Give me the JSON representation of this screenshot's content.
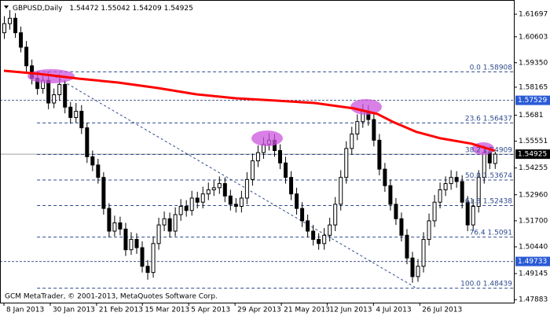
{
  "chart_data": {
    "type": "candlestick",
    "symbol": "GBPUSD,Daily",
    "ohlc": [
      1.54472,
      1.55042,
      1.54209,
      1.54925
    ],
    "footer": "GCM MetaTrader, © 2001-2013, MetaQuotes Software Corp.",
    "ylim": [
      1.4774,
      1.6227
    ],
    "yticks": [
      1.61697,
      1.60603,
      {
        "value": 1.5935,
        "label": "1.59350"
      },
      1.58165,
      1.5681,
      1.55551,
      1.54255,
      {
        "value": 1.5296,
        "label": "1.52960"
      },
      {
        "value": 1.517,
        "label": "1.51700"
      },
      {
        "value": 1.5044,
        "label": "1.50440"
      },
      1.49145,
      1.47883
    ],
    "xticks": [
      {
        "value": 0,
        "label": "8 Jan 2013"
      },
      {
        "value": 8.4,
        "label": "30 Jan 2013"
      },
      {
        "value": 16.8,
        "label": "21 Feb 2013"
      },
      {
        "value": 25.1,
        "label": "15 Mar 2013"
      },
      {
        "value": 33.5,
        "label": "5 Apr 2013"
      },
      {
        "value": 41.9,
        "label": "29 Apr 2013"
      },
      {
        "value": 50.3,
        "label": "21 May 2013"
      },
      {
        "value": 58.6,
        "label": "12 Jun 2013"
      },
      {
        "value": 67,
        "label": "4 Jul 2013"
      },
      {
        "value": 75.4,
        "label": "26 Jul 2013"
      }
    ],
    "candles": [
      [
        1.608,
        1.616,
        1.605,
        1.6124
      ],
      [
        1.6124,
        1.619,
        1.6095,
        1.615
      ],
      [
        1.615,
        1.6175,
        1.6055,
        1.608
      ],
      [
        1.608,
        1.611,
        1.5985,
        1.601
      ],
      [
        1.601,
        1.604,
        1.589,
        1.592
      ],
      [
        1.592,
        1.595,
        1.583,
        1.586
      ],
      [
        1.586,
        1.589,
        1.578,
        1.581
      ],
      [
        1.581,
        1.588,
        1.5785,
        1.585
      ],
      [
        1.585,
        1.5875,
        1.571,
        1.574
      ],
      [
        1.574,
        1.581,
        1.5715,
        1.578
      ],
      [
        1.578,
        1.588,
        1.575,
        1.583
      ],
      [
        1.583,
        1.585,
        1.569,
        1.572
      ],
      [
        1.572,
        1.5745,
        1.564,
        1.567
      ],
      [
        1.567,
        1.574,
        1.5645,
        1.57
      ],
      [
        1.57,
        1.573,
        1.559,
        1.562
      ],
      [
        1.562,
        1.5645,
        1.545,
        1.548
      ],
      [
        1.548,
        1.551,
        1.541,
        1.544
      ],
      [
        1.544,
        1.547,
        1.535,
        1.538
      ],
      [
        1.538,
        1.5405,
        1.52,
        1.523
      ],
      [
        1.523,
        1.5255,
        1.509,
        1.512
      ],
      [
        1.512,
        1.5195,
        1.5095,
        1.516
      ],
      [
        1.516,
        1.519,
        1.51,
        1.513
      ],
      [
        1.513,
        1.516,
        1.5,
        1.503
      ],
      [
        1.503,
        1.5115,
        1.5005,
        1.508
      ],
      [
        1.508,
        1.511,
        1.501,
        1.504
      ],
      [
        1.504,
        1.507,
        1.492,
        1.495
      ],
      [
        1.495,
        1.498,
        1.4885,
        1.492
      ],
      [
        1.492,
        1.5095,
        1.4895,
        1.506
      ],
      [
        1.506,
        1.5185,
        1.503,
        1.515
      ],
      [
        1.515,
        1.5215,
        1.512,
        1.518
      ],
      [
        1.518,
        1.521,
        1.509,
        1.512
      ],
      [
        1.512,
        1.5235,
        1.5095,
        1.52
      ],
      [
        1.52,
        1.5275,
        1.517,
        1.524
      ],
      [
        1.524,
        1.527,
        1.519,
        1.522
      ],
      [
        1.522,
        1.5315,
        1.5195,
        1.528
      ],
      [
        1.528,
        1.531,
        1.523,
        1.526
      ],
      [
        1.526,
        1.5335,
        1.523,
        1.53
      ],
      [
        1.53,
        1.5355,
        1.527,
        1.532
      ],
      [
        1.532,
        1.5365,
        1.529,
        1.533
      ],
      [
        1.533,
        1.5385,
        1.53,
        1.535
      ],
      [
        1.535,
        1.538,
        1.526,
        1.529
      ],
      [
        1.529,
        1.532,
        1.522,
        1.525
      ],
      [
        1.525,
        1.528,
        1.521,
        1.524
      ],
      [
        1.524,
        1.5315,
        1.521,
        1.528
      ],
      [
        1.528,
        1.5405,
        1.525,
        1.537
      ],
      [
        1.537,
        1.5495,
        1.534,
        1.546
      ],
      [
        1.546,
        1.5535,
        1.543,
        1.55
      ],
      [
        1.55,
        1.5575,
        1.547,
        1.554
      ],
      [
        1.554,
        1.5595,
        1.551,
        1.556
      ],
      [
        1.556,
        1.559,
        1.548,
        1.551
      ],
      [
        1.551,
        1.554,
        1.542,
        1.545
      ],
      [
        1.545,
        1.548,
        1.535,
        1.538
      ],
      [
        1.538,
        1.541,
        1.527,
        1.53
      ],
      [
        1.53,
        1.533,
        1.52,
        1.523
      ],
      [
        1.523,
        1.526,
        1.514,
        1.517
      ],
      [
        1.517,
        1.52,
        1.509,
        1.512
      ],
      [
        1.512,
        1.515,
        1.505,
        1.508
      ],
      [
        1.508,
        1.511,
        1.503,
        1.506
      ],
      [
        1.506,
        1.5135,
        1.503,
        1.51
      ],
      [
        1.51,
        1.5185,
        1.507,
        1.515
      ],
      [
        1.515,
        1.5285,
        1.512,
        1.525
      ],
      [
        1.525,
        1.5415,
        1.522,
        1.538
      ],
      [
        1.538,
        1.5555,
        1.535,
        1.552
      ],
      [
        1.552,
        1.5625,
        1.549,
        1.559
      ],
      [
        1.559,
        1.5685,
        1.556,
        1.565
      ],
      [
        1.565,
        1.5735,
        1.562,
        1.57
      ],
      [
        1.57,
        1.573,
        1.563,
        1.566
      ],
      [
        1.566,
        1.569,
        1.553,
        1.556
      ],
      [
        1.556,
        1.559,
        1.539,
        1.542
      ],
      [
        1.542,
        1.545,
        1.531,
        1.534
      ],
      [
        1.534,
        1.537,
        1.522,
        1.525
      ],
      [
        1.525,
        1.528,
        1.515,
        1.518
      ],
      [
        1.518,
        1.521,
        1.507,
        1.51
      ],
      [
        1.51,
        1.513,
        1.496,
        1.499
      ],
      [
        1.499,
        1.502,
        1.487,
        1.49
      ],
      [
        1.49,
        1.4985,
        1.4875,
        1.495
      ],
      [
        1.495,
        1.5115,
        1.492,
        1.508
      ],
      [
        1.508,
        1.5205,
        1.505,
        1.517
      ],
      [
        1.517,
        1.5295,
        1.514,
        1.526
      ],
      [
        1.526,
        1.5355,
        1.523,
        1.532
      ],
      [
        1.532,
        1.5385,
        1.529,
        1.535
      ],
      [
        1.535,
        1.5415,
        1.532,
        1.538
      ],
      [
        1.538,
        1.541,
        1.533,
        1.536
      ],
      [
        1.536,
        1.539,
        1.523,
        1.526
      ],
      [
        1.526,
        1.529,
        1.512,
        1.515
      ],
      [
        1.515,
        1.5275,
        1.512,
        1.524
      ],
      [
        1.524,
        1.5415,
        1.521,
        1.538
      ],
      [
        1.538,
        1.5535,
        1.535,
        1.55
      ],
      [
        1.55,
        1.553,
        1.542,
        1.545
      ],
      [
        1.54472,
        1.55042,
        1.54209,
        1.54925
      ]
    ],
    "ma": {
      "color": "#ff0000",
      "x": [
        0,
        6.4,
        13.5,
        20.7,
        27.8,
        34.9,
        42,
        49.1,
        56.3,
        63.4,
        67.7,
        70.5,
        74.8,
        79,
        84.8,
        89
      ],
      "values": [
        1.5896,
        1.5881,
        1.5858,
        1.5839,
        1.5813,
        1.5782,
        1.5763,
        1.5752,
        1.574,
        1.5714,
        1.5687,
        1.5649,
        1.56,
        1.557,
        1.5543,
        1.5509
      ]
    },
    "trendline": {
      "x": [
        7.8,
        74.8
      ],
      "values": [
        1.58908,
        1.48439
      ]
    },
    "fibo_start": 6,
    "fibo": [
      {
        "level": "0.0",
        "price": 1.58908
      },
      {
        "level": "23.6",
        "price": 1.56437
      },
      {
        "level": "38.2",
        "price": 1.54909
      },
      {
        "level": "50.0",
        "price": 1.53674
      },
      {
        "level": "61.8",
        "price": 1.52438
      },
      {
        "level": "76.4",
        "price": 1.5091
      },
      {
        "level": "100.0",
        "price": 1.48439
      }
    ],
    "price_markers": [
      {
        "value": 1.57529,
        "color": "#2a5bd7"
      },
      {
        "value": 1.54925,
        "color": "#000000"
      },
      {
        "value": 1.49733,
        "color": "#2a5bd7"
      }
    ]
  }
}
